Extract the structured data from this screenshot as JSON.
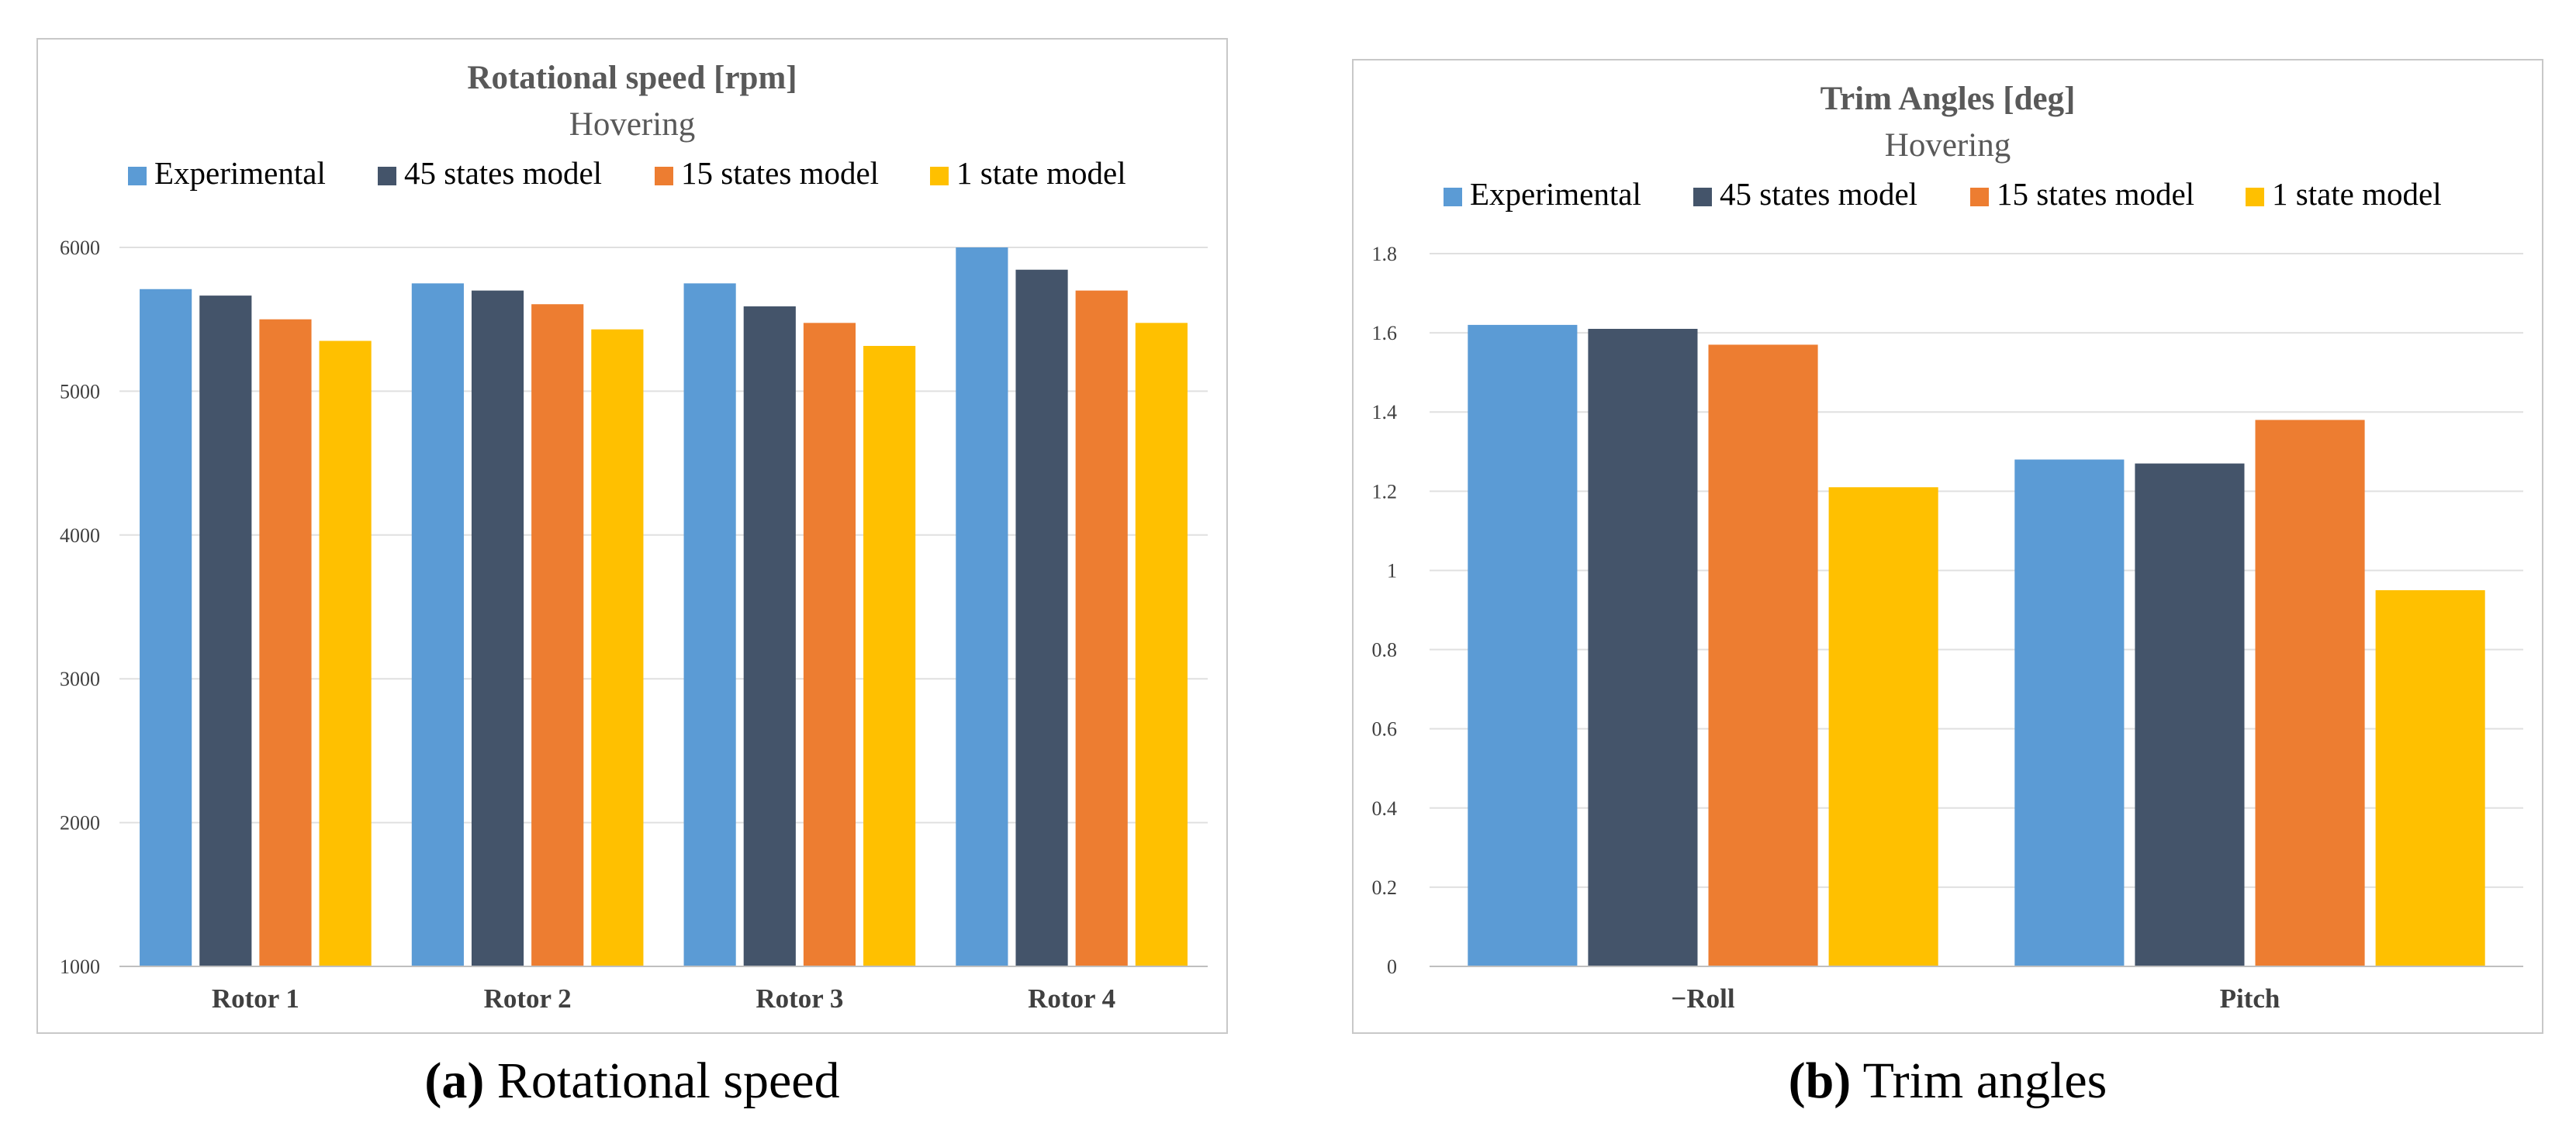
{
  "colors": {
    "experimental": "#5b9bd5",
    "states45": "#44546a",
    "states15": "#ed7d31",
    "state1": "#ffc000",
    "title": "#595959",
    "tick": "#404040",
    "grid": "#e0e0e0",
    "axis": "#bfbfbf"
  },
  "chart_data": [
    {
      "type": "bar",
      "title": "Rotational speed [rpm]",
      "subtitle": "Hovering",
      "xlabel": "",
      "ylabel": "",
      "categories": [
        "Rotor 1",
        "Rotor 2",
        "Rotor 3",
        "Rotor 4"
      ],
      "series": [
        {
          "name": "Experimental",
          "values": [
            5710,
            5750,
            5750,
            6000
          ]
        },
        {
          "name": "45 states model",
          "values": [
            5665,
            5700,
            5590,
            5845
          ]
        },
        {
          "name": "15 states model",
          "values": [
            5500,
            5605,
            5475,
            5700
          ]
        },
        {
          "name": "1 state model",
          "values": [
            5350,
            5430,
            5315,
            5475
          ]
        }
      ],
      "ylim": [
        1000,
        6000
      ],
      "yticks": [
        "1000",
        "2000",
        "3000",
        "4000",
        "5000",
        "6000"
      ],
      "ytick_values": [
        1000,
        2000,
        3000,
        4000,
        5000,
        6000
      ],
      "legend": "top",
      "grid": true
    },
    {
      "type": "bar",
      "title": "Trim Angles [deg]",
      "subtitle": "Hovering",
      "xlabel": "",
      "ylabel": "",
      "categories": [
        "−Roll",
        "Pitch"
      ],
      "series": [
        {
          "name": "Experimental",
          "values": [
            1.62,
            1.28
          ]
        },
        {
          "name": "45 states model",
          "values": [
            1.61,
            1.27
          ]
        },
        {
          "name": "15 states model",
          "values": [
            1.57,
            1.38
          ]
        },
        {
          "name": "1 state model",
          "values": [
            1.21,
            0.95
          ]
        }
      ],
      "ylim": [
        0,
        1.8
      ],
      "yticks": [
        "0",
        "0.2",
        "0.4",
        "0.6",
        "0.8",
        "1",
        "1.2",
        "1.4",
        "1.6",
        "1.8"
      ],
      "ytick_values": [
        0,
        0.2,
        0.4,
        0.6,
        0.8,
        1,
        1.2,
        1.4,
        1.6,
        1.8
      ],
      "legend": "top",
      "grid": true
    }
  ],
  "captions": [
    {
      "label": "(a)",
      "text": " Rotational speed"
    },
    {
      "label": "(b)",
      "text": " Trim angles"
    }
  ]
}
